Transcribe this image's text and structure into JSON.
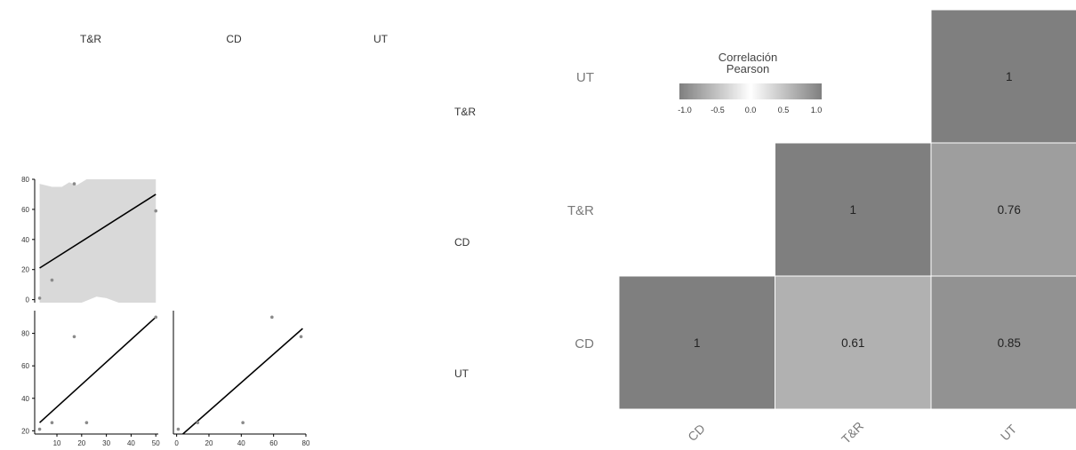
{
  "chart_data": [
    {
      "type": "scatter",
      "variables": [
        "T&R",
        "CD",
        "UT"
      ],
      "row_labels": [
        "T&R",
        "CD",
        "UT"
      ],
      "panels": [
        {
          "row": "CD",
          "col": "T&R",
          "points": [
            [
              3,
              1
            ],
            [
              8,
              13
            ],
            [
              17,
              77
            ],
            [
              50,
              59
            ]
          ],
          "fit": [
            [
              3,
              21
            ],
            [
              50,
              70
            ]
          ],
          "band_upper": [
            [
              3,
              77
            ],
            [
              8,
              75
            ],
            [
              12,
              75
            ],
            [
              15,
              78
            ],
            [
              18,
              76
            ],
            [
              22,
              80
            ],
            [
              50,
              80
            ]
          ],
          "band_lower": [
            [
              3,
              -2
            ],
            [
              10,
              -2
            ],
            [
              20,
              -2
            ],
            [
              26,
              2
            ],
            [
              30,
              1
            ],
            [
              35,
              -2
            ],
            [
              50,
              -2
            ]
          ],
          "xlim": [
            1,
            51
          ],
          "ylim": [
            -2,
            80
          ],
          "yticks": [
            0,
            20,
            40,
            60,
            80
          ]
        },
        {
          "row": "UT",
          "col": "T&R",
          "points": [
            [
              3,
              21
            ],
            [
              8,
              25
            ],
            [
              17,
              78
            ],
            [
              22,
              25
            ],
            [
              50,
              90
            ]
          ],
          "fit": [
            [
              3,
              25
            ],
            [
              50,
              90
            ]
          ],
          "xlim": [
            1,
            51
          ],
          "ylim": [
            18,
            94
          ],
          "xticks": [
            10,
            20,
            30,
            40,
            50
          ],
          "yticks": [
            20,
            40,
            60,
            80
          ]
        },
        {
          "row": "UT",
          "col": "CD",
          "points": [
            [
              1,
              21
            ],
            [
              13,
              25
            ],
            [
              41,
              25
            ],
            [
              59,
              90
            ],
            [
              77,
              78
            ]
          ],
          "fit": [
            [
              -3,
              12
            ],
            [
              78,
              83
            ]
          ],
          "xlim": [
            -2,
            80
          ],
          "ylim": [
            18,
            94
          ],
          "xticks": [
            0,
            20,
            40,
            60,
            80
          ]
        }
      ]
    },
    {
      "type": "heatmap",
      "x_categories": [
        "CD",
        "T&R",
        "UT"
      ],
      "y_categories": [
        "CD",
        "T&R",
        "UT"
      ],
      "cells": [
        {
          "x": "CD",
          "y": "CD",
          "value": 1,
          "label": "1"
        },
        {
          "x": "T&R",
          "y": "CD",
          "value": 0.61,
          "label": "0.61"
        },
        {
          "x": "UT",
          "y": "CD",
          "value": 0.85,
          "label": "0.85"
        },
        {
          "x": "T&R",
          "y": "T&R",
          "value": 1,
          "label": "1"
        },
        {
          "x": "UT",
          "y": "T&R",
          "value": 0.76,
          "label": "0.76"
        },
        {
          "x": "UT",
          "y": "UT",
          "value": 1,
          "label": "1"
        }
      ],
      "legend": {
        "title": [
          "Correlación",
          "Pearson"
        ],
        "range": [
          -1,
          1
        ],
        "ticks": [
          "-1.0",
          "-0.5",
          "0.0",
          "0.5",
          "1.0"
        ],
        "placement": "top-left"
      },
      "colors": {
        "neg": "#7f7f7f",
        "mid": "#ffffff",
        "pos": "#7f7f7f",
        "grid": "#ffffff"
      }
    }
  ]
}
